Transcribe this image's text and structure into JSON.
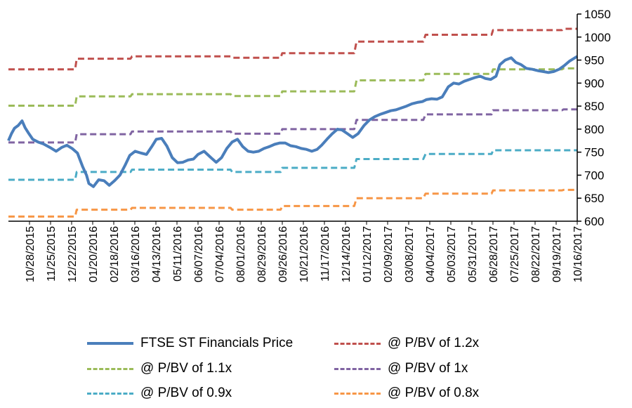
{
  "chart_data": {
    "type": "line",
    "title": "",
    "xlabel": "",
    "ylabel": "",
    "ylim": [
      600,
      1050
    ],
    "yticks": [
      600,
      650,
      700,
      750,
      800,
      850,
      900,
      950,
      1000,
      1050
    ],
    "y_axis_side": "right",
    "grid": false,
    "legend_position": "bottom",
    "x_range": [
      "2015-10-01",
      "2017-10-20"
    ],
    "x_tick_labels": [
      "10/28/2015",
      "11/25/2015",
      "12/22/2015",
      "01/20/2016",
      "02/18/2016",
      "03/16/2016",
      "04/13/2016",
      "05/11/2016",
      "06/07/2016",
      "07/04/2016",
      "08/01/2016",
      "08/29/2016",
      "09/26/2016",
      "10/21/2016",
      "11/17/2016",
      "12/14/2016",
      "01/12/2017",
      "02/09/2017",
      "03/08/2017",
      "04/04/2017",
      "05/03/2017",
      "05/31/2017",
      "06/28/2017",
      "07/25/2017",
      "08/22/2017",
      "09/19/2017",
      "10/16/2017"
    ],
    "series": [
      {
        "name": "FTSE ST Financials Price",
        "color": "#4a7ebb",
        "style": "solid",
        "points": [
          [
            "2015-10-01",
            775
          ],
          [
            "2015-10-05",
            790
          ],
          [
            "2015-10-09",
            802
          ],
          [
            "2015-10-14",
            808
          ],
          [
            "2015-10-19",
            818
          ],
          [
            "2015-10-23",
            803
          ],
          [
            "2015-10-28",
            790
          ],
          [
            "2015-11-02",
            778
          ],
          [
            "2015-11-09",
            772
          ],
          [
            "2015-11-16",
            768
          ],
          [
            "2015-11-25",
            760
          ],
          [
            "2015-12-03",
            752
          ],
          [
            "2015-12-10",
            760
          ],
          [
            "2015-12-17",
            765
          ],
          [
            "2015-12-24",
            758
          ],
          [
            "2015-12-31",
            748
          ],
          [
            "2016-01-07",
            718
          ],
          [
            "2016-01-12",
            700
          ],
          [
            "2016-01-15",
            682
          ],
          [
            "2016-01-21",
            675
          ],
          [
            "2016-01-28",
            690
          ],
          [
            "2016-02-04",
            688
          ],
          [
            "2016-02-11",
            678
          ],
          [
            "2016-02-18",
            688
          ],
          [
            "2016-02-25",
            700
          ],
          [
            "2016-03-03",
            722
          ],
          [
            "2016-03-09",
            743
          ],
          [
            "2016-03-16",
            752
          ],
          [
            "2016-03-24",
            748
          ],
          [
            "2016-03-31",
            745
          ],
          [
            "2016-04-07",
            762
          ],
          [
            "2016-04-13",
            778
          ],
          [
            "2016-04-20",
            780
          ],
          [
            "2016-04-27",
            763
          ],
          [
            "2016-05-04",
            738
          ],
          [
            "2016-05-11",
            727
          ],
          [
            "2016-05-18",
            728
          ],
          [
            "2016-05-25",
            733
          ],
          [
            "2016-06-01",
            735
          ],
          [
            "2016-06-07",
            745
          ],
          [
            "2016-06-15",
            752
          ],
          [
            "2016-06-24",
            738
          ],
          [
            "2016-07-01",
            728
          ],
          [
            "2016-07-08",
            738
          ],
          [
            "2016-07-15",
            758
          ],
          [
            "2016-07-22",
            772
          ],
          [
            "2016-07-29",
            778
          ],
          [
            "2016-08-05",
            762
          ],
          [
            "2016-08-12",
            752
          ],
          [
            "2016-08-19",
            750
          ],
          [
            "2016-08-26",
            752
          ],
          [
            "2016-09-02",
            758
          ],
          [
            "2016-09-09",
            762
          ],
          [
            "2016-09-16",
            767
          ],
          [
            "2016-09-23",
            770
          ],
          [
            "2016-09-30",
            770
          ],
          [
            "2016-10-07",
            764
          ],
          [
            "2016-10-14",
            762
          ],
          [
            "2016-10-21",
            758
          ],
          [
            "2016-10-28",
            756
          ],
          [
            "2016-11-04",
            752
          ],
          [
            "2016-11-11",
            756
          ],
          [
            "2016-11-17",
            765
          ],
          [
            "2016-11-24",
            778
          ],
          [
            "2016-12-01",
            790
          ],
          [
            "2016-12-08",
            800
          ],
          [
            "2016-12-14",
            798
          ],
          [
            "2016-12-21",
            790
          ],
          [
            "2016-12-28",
            782
          ],
          [
            "2017-01-04",
            790
          ],
          [
            "2017-01-12",
            808
          ],
          [
            "2017-01-19",
            820
          ],
          [
            "2017-01-26",
            827
          ],
          [
            "2017-02-02",
            832
          ],
          [
            "2017-02-09",
            836
          ],
          [
            "2017-02-16",
            840
          ],
          [
            "2017-02-23",
            842
          ],
          [
            "2017-03-02",
            846
          ],
          [
            "2017-03-09",
            850
          ],
          [
            "2017-03-16",
            855
          ],
          [
            "2017-03-23",
            858
          ],
          [
            "2017-03-30",
            860
          ],
          [
            "2017-04-04",
            864
          ],
          [
            "2017-04-11",
            866
          ],
          [
            "2017-04-18",
            865
          ],
          [
            "2017-04-25",
            870
          ],
          [
            "2017-05-03",
            892
          ],
          [
            "2017-05-10",
            900
          ],
          [
            "2017-05-17",
            898
          ],
          [
            "2017-05-24",
            904
          ],
          [
            "2017-05-31",
            908
          ],
          [
            "2017-06-07",
            912
          ],
          [
            "2017-06-14",
            915
          ],
          [
            "2017-06-21",
            910
          ],
          [
            "2017-06-28",
            908
          ],
          [
            "2017-07-05",
            915
          ],
          [
            "2017-07-10",
            940
          ],
          [
            "2017-07-17",
            950
          ],
          [
            "2017-07-25",
            955
          ],
          [
            "2017-07-31",
            945
          ],
          [
            "2017-08-07",
            940
          ],
          [
            "2017-08-14",
            932
          ],
          [
            "2017-08-22",
            930
          ],
          [
            "2017-08-29",
            927
          ],
          [
            "2017-09-05",
            925
          ],
          [
            "2017-09-12",
            923
          ],
          [
            "2017-09-19",
            925
          ],
          [
            "2017-09-26",
            930
          ],
          [
            "2017-10-03",
            938
          ],
          [
            "2017-10-10",
            948
          ],
          [
            "2017-10-20",
            958
          ]
        ]
      },
      {
        "name": "@ P/BV of 1.2x",
        "color": "#c0504d",
        "style": "dashed",
        "points": [
          [
            "2015-10-01",
            930
          ],
          [
            "2015-12-28",
            930
          ],
          [
            "2015-12-30",
            953
          ],
          [
            "2016-03-10",
            953
          ],
          [
            "2016-03-12",
            958
          ],
          [
            "2016-07-20",
            958
          ],
          [
            "2016-07-22",
            955
          ],
          [
            "2016-09-24",
            955
          ],
          [
            "2016-09-26",
            965
          ],
          [
            "2016-12-30",
            965
          ],
          [
            "2017-01-02",
            990
          ],
          [
            "2017-03-31",
            990
          ],
          [
            "2017-04-03",
            1005
          ],
          [
            "2017-06-29",
            1005
          ],
          [
            "2017-07-01",
            1015
          ],
          [
            "2017-09-30",
            1015
          ],
          [
            "2017-10-02",
            1018
          ],
          [
            "2017-10-20",
            1018
          ]
        ]
      },
      {
        "name": "@ P/BV of 1.1x",
        "color": "#9bbb59",
        "style": "dashed",
        "points": [
          [
            "2015-10-01",
            851
          ],
          [
            "2015-12-28",
            851
          ],
          [
            "2015-12-30",
            871
          ],
          [
            "2016-03-10",
            871
          ],
          [
            "2016-03-12",
            876
          ],
          [
            "2016-07-20",
            876
          ],
          [
            "2016-07-22",
            872
          ],
          [
            "2016-09-24",
            872
          ],
          [
            "2016-09-26",
            882
          ],
          [
            "2016-12-30",
            882
          ],
          [
            "2017-01-02",
            906
          ],
          [
            "2017-03-31",
            906
          ],
          [
            "2017-04-03",
            920
          ],
          [
            "2017-06-29",
            920
          ],
          [
            "2017-07-01",
            930
          ],
          [
            "2017-09-30",
            930
          ],
          [
            "2017-10-02",
            932
          ],
          [
            "2017-10-20",
            932
          ]
        ]
      },
      {
        "name": "@ P/BV of 1x",
        "color": "#8064a2",
        "style": "dashed",
        "points": [
          [
            "2015-10-01",
            771
          ],
          [
            "2015-12-28",
            771
          ],
          [
            "2015-12-30",
            789
          ],
          [
            "2016-03-10",
            789
          ],
          [
            "2016-03-12",
            795
          ],
          [
            "2016-07-20",
            795
          ],
          [
            "2016-07-22",
            790
          ],
          [
            "2016-09-24",
            790
          ],
          [
            "2016-09-26",
            800
          ],
          [
            "2016-12-30",
            800
          ],
          [
            "2017-01-02",
            820
          ],
          [
            "2017-03-31",
            820
          ],
          [
            "2017-04-03",
            832
          ],
          [
            "2017-06-29",
            832
          ],
          [
            "2017-07-01",
            841
          ],
          [
            "2017-09-30",
            841
          ],
          [
            "2017-10-02",
            843
          ],
          [
            "2017-10-20",
            843
          ]
        ]
      },
      {
        "name": "@ P/BV of 0.9x",
        "color": "#4bacc6",
        "style": "dashed",
        "points": [
          [
            "2015-10-01",
            690
          ],
          [
            "2015-12-28",
            690
          ],
          [
            "2015-12-30",
            707
          ],
          [
            "2016-03-10",
            707
          ],
          [
            "2016-03-12",
            712
          ],
          [
            "2016-07-20",
            712
          ],
          [
            "2016-07-22",
            707
          ],
          [
            "2016-09-24",
            707
          ],
          [
            "2016-09-26",
            716
          ],
          [
            "2016-12-30",
            716
          ],
          [
            "2017-01-02",
            735
          ],
          [
            "2017-03-31",
            735
          ],
          [
            "2017-04-03",
            746
          ],
          [
            "2017-06-29",
            746
          ],
          [
            "2017-07-01",
            754
          ],
          [
            "2017-09-30",
            754
          ],
          [
            "2017-10-02",
            754
          ],
          [
            "2017-10-20",
            754
          ]
        ]
      },
      {
        "name": "@ P/BV of 0.8x",
        "color": "#f79646",
        "style": "dashed",
        "points": [
          [
            "2015-10-01",
            610
          ],
          [
            "2015-12-28",
            610
          ],
          [
            "2015-12-30",
            625
          ],
          [
            "2016-03-10",
            625
          ],
          [
            "2016-03-12",
            629
          ],
          [
            "2016-07-20",
            629
          ],
          [
            "2016-07-22",
            625
          ],
          [
            "2016-09-24",
            625
          ],
          [
            "2016-09-26",
            633
          ],
          [
            "2016-12-30",
            633
          ],
          [
            "2017-01-02",
            650
          ],
          [
            "2017-03-31",
            650
          ],
          [
            "2017-04-03",
            660
          ],
          [
            "2017-06-29",
            660
          ],
          [
            "2017-07-01",
            667
          ],
          [
            "2017-09-30",
            667
          ],
          [
            "2017-10-02",
            668
          ],
          [
            "2017-10-20",
            668
          ]
        ]
      }
    ]
  }
}
